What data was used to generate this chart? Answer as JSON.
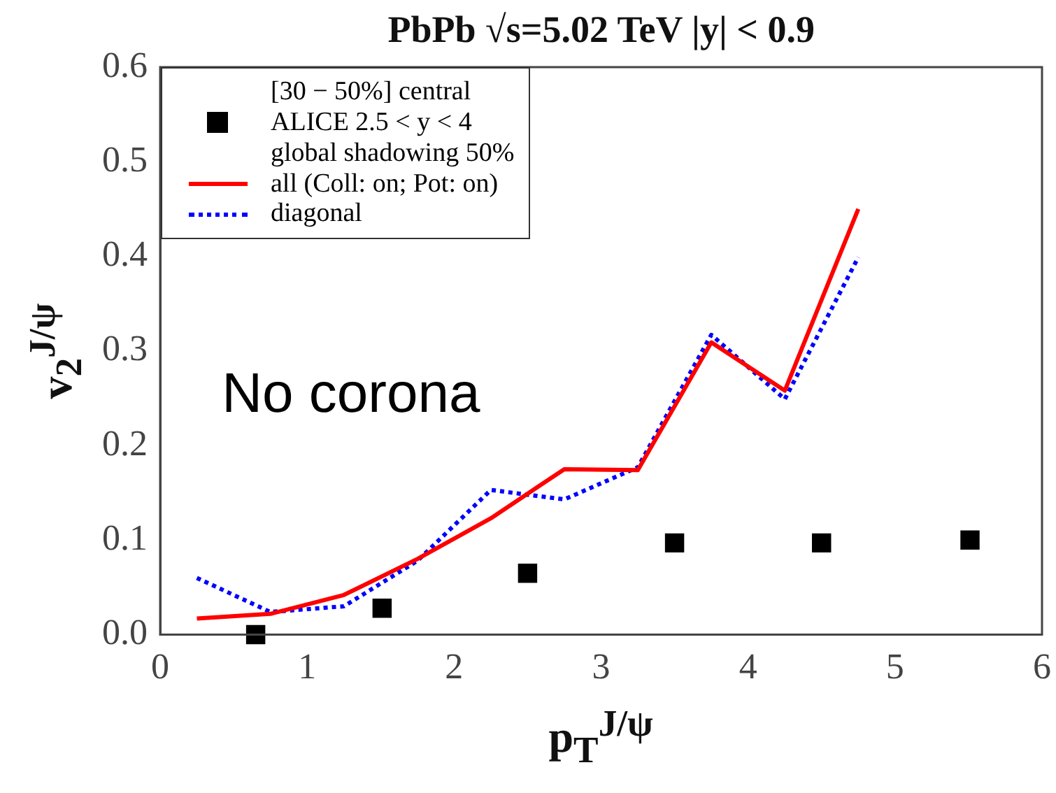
{
  "chart_data": {
    "type": "line",
    "title": "PbPb √s=5.02 TeV |y| < 0.9",
    "xlabel": "p$_{T}$$^{J/ψ}$",
    "ylabel": "v$_{2}$$^{J/ψ}$",
    "annotations": [
      "No corona"
    ],
    "xlim": [
      0,
      6
    ],
    "xticks": [
      0,
      1,
      2,
      3,
      4,
      5,
      6
    ],
    "ylim": [
      0,
      0.6
    ],
    "yticks": [
      {
        "value": 0,
        "label": "0.0"
      },
      0.1,
      0.2,
      0.3,
      0.4,
      0.5,
      0.6
    ],
    "grid": false,
    "legend": "top left",
    "series": [
      {
        "name": "[30 − 50%] central\nALICE 2.5 < y < 4\nglobal shadowing 50%",
        "type": "scatter",
        "marker": "square",
        "color": "#000000",
        "x": [
          0.65,
          1.51,
          2.5,
          3.5,
          4.5,
          5.51
        ],
        "values": [
          0.0,
          0.028,
          0.065,
          0.097,
          0.097,
          0.1
        ]
      },
      {
        "name": "all (Coll: on; Pot: on)",
        "type": "line",
        "line_style": "solid",
        "color": "#ff0000",
        "x": [
          0.25,
          0.75,
          1.25,
          1.75,
          2.25,
          2.75,
          3.25,
          3.75,
          4.25,
          4.75
        ],
        "values": [
          0.017,
          0.022,
          0.042,
          0.08,
          0.123,
          0.175,
          0.174,
          0.309,
          0.258,
          0.45
        ]
      },
      {
        "name": "diagonal",
        "type": "line",
        "line_style": "dotted",
        "color": "#0000ff",
        "x": [
          0.25,
          0.75,
          1.25,
          1.75,
          2.25,
          2.75,
          3.25,
          3.75,
          4.25,
          4.75
        ],
        "values": [
          0.06,
          0.024,
          0.03,
          0.078,
          0.153,
          0.143,
          0.177,
          0.317,
          0.249,
          0.399
        ]
      }
    ]
  }
}
